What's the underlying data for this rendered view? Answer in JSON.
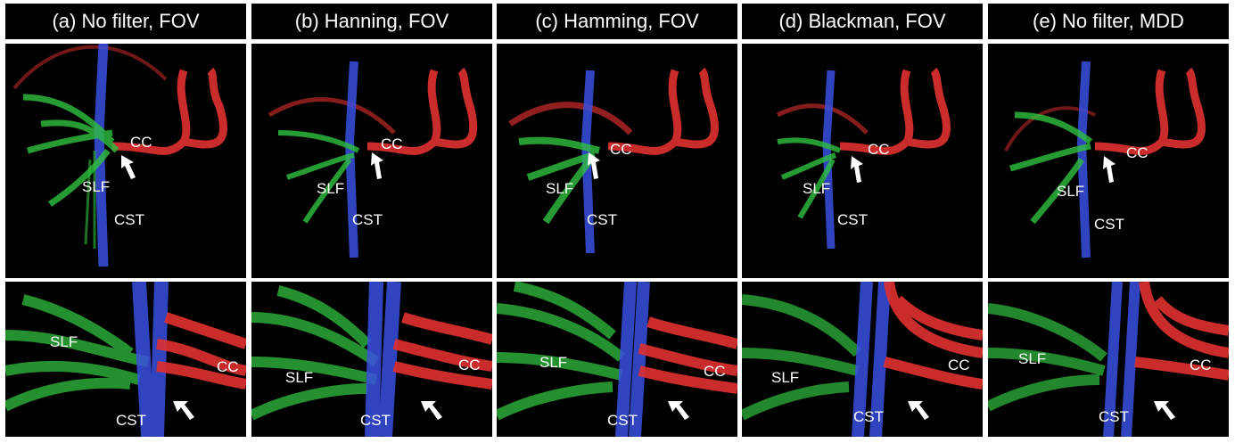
{
  "panels": [
    {
      "title": "(a) No filter, FOV"
    },
    {
      "title": "(b) Hanning, FOV"
    },
    {
      "title": "(c) Hamming, FOV"
    },
    {
      "title": "(d) Blackman, FOV"
    },
    {
      "title": "(e) No filter, MDD"
    }
  ],
  "labels": {
    "cc": "CC",
    "slf": "SLF",
    "cst": "CST"
  },
  "colors": {
    "left_right": "#e03030",
    "anterior_posterior": "#30c040",
    "superior_inferior": "#3a50e0",
    "background": "#000000",
    "arrow": "#ffffff"
  }
}
